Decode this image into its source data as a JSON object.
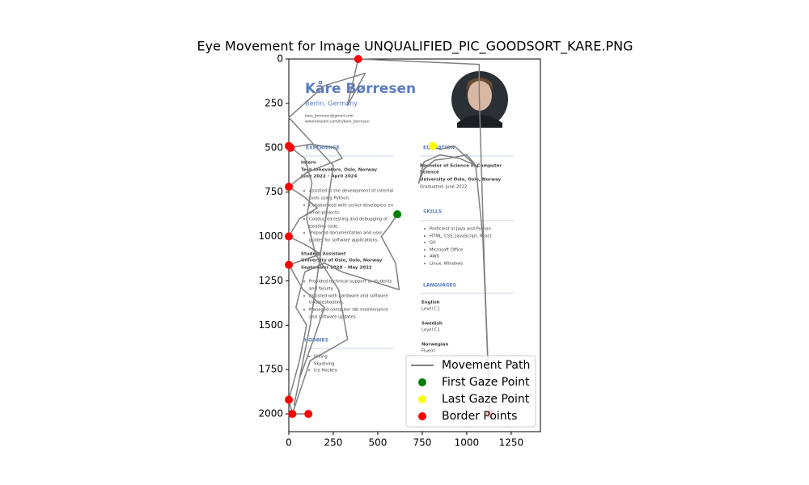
{
  "chart_data": {
    "type": "line",
    "title": "Eye Movement for Image UNQUALIFIED_PIC_GOODSORT_KARE.PNG",
    "xlim": [
      0,
      1414
    ],
    "ylim": [
      2100,
      0
    ],
    "xticks": [
      0,
      250,
      500,
      750,
      1000,
      1250
    ],
    "yticks": [
      0,
      250,
      500,
      750,
      1000,
      1250,
      1500,
      1750,
      2000
    ],
    "legend": "lower right",
    "series": [
      {
        "name": "Movement Path",
        "type": "line",
        "color": "gray",
        "x": [
          610,
          560,
          520,
          600,
          620,
          460,
          300,
          200,
          90,
          40,
          100,
          60,
          0,
          20,
          110,
          20,
          120,
          330,
          280,
          150,
          100,
          130,
          90,
          0,
          10,
          120,
          260,
          300,
          200,
          100,
          0,
          90,
          160,
          60,
          0,
          100,
          180,
          0,
          80,
          200,
          150,
          60,
          30,
          120,
          250,
          0,
          200,
          430,
          330,
          390,
          1070,
          1070,
          1100,
          1130,
          1090,
          1050,
          960,
          850,
          760,
          730,
          760,
          820,
          900,
          1000,
          1060,
          930,
          850,
          810
        ],
        "y": [
          875,
          950,
          1000,
          1150,
          1300,
          1250,
          1200,
          1150,
          1200,
          1400,
          1500,
          1700,
          1920,
          2000,
          2000,
          2000,
          1700,
          1580,
          1300,
          1100,
          900,
          700,
          560,
          490,
          500,
          480,
          500,
          560,
          600,
          640,
          720,
          780,
          840,
          900,
          1000,
          1050,
          1100,
          1160,
          1300,
          1400,
          1550,
          1800,
          1950,
          1500,
          600,
          330,
          150,
          80,
          260,
          0,
          30,
          200,
          1200,
          2000,
          1000,
          600,
          560,
          540,
          580,
          700,
          620,
          570,
          560,
          540,
          610,
          490,
          510,
          490
        ]
      },
      {
        "name": "First Gaze Point",
        "type": "scatter",
        "color": "green",
        "x": [
          610
        ],
        "y": [
          875
        ]
      },
      {
        "name": "Last Gaze Point",
        "type": "scatter",
        "color": "yellow",
        "x": [
          810
        ],
        "y": [
          490
        ]
      },
      {
        "name": "Border Points",
        "type": "scatter",
        "color": "red",
        "x": [
          0,
          10,
          0,
          0,
          0,
          0,
          20,
          110,
          390,
          1130
        ],
        "y": [
          490,
          500,
          720,
          1000,
          1160,
          1920,
          2000,
          2000,
          0,
          2000
        ]
      }
    ],
    "image_text": [
      "Kåre Børresen",
      "Berlin, Germany",
      "kare_borresen@gmail.com",
      "www.linkedin.com/in/kare_borresen",
      "EXPERIENCE",
      "Intern",
      "Tech Innovators, Oslo, Norway",
      "June 2022 – April 2024",
      "Assisted in the development of internal",
      "tools using Python.",
      "Collaborated with senior developers on",
      "small projects.",
      "Conducted testing and debugging of",
      "existing code.",
      "Prepared documentation and user",
      "guides for software applications.",
      "Student Assistant",
      "University of Oslo, Oslo, Norway",
      "September 2020 – May 2022",
      "Provided technical support to students",
      "and faculty.",
      "Assisted with hardware and software",
      "troubleshooting.",
      "Managed computer lab maintenance",
      "and software updates.",
      "HOBBIES",
      "Hiking",
      "Skydiving",
      "Ice Hockey",
      "EDUCATION",
      "Bachelor of Science in Computer",
      "Science",
      "University of Oslo, Oslo, Norway",
      "Graduated: June 2022",
      "SKILLS",
      "Proficient in Java and Python",
      "HTML, CSS, JavaScript, React",
      "Git",
      "Microsoft Office",
      "AWS",
      "Linux, Windows",
      "LANGUAGES",
      "English",
      "Level C1",
      "Swedish",
      "Level C1",
      "Norwegian",
      "Fluent"
    ]
  }
}
